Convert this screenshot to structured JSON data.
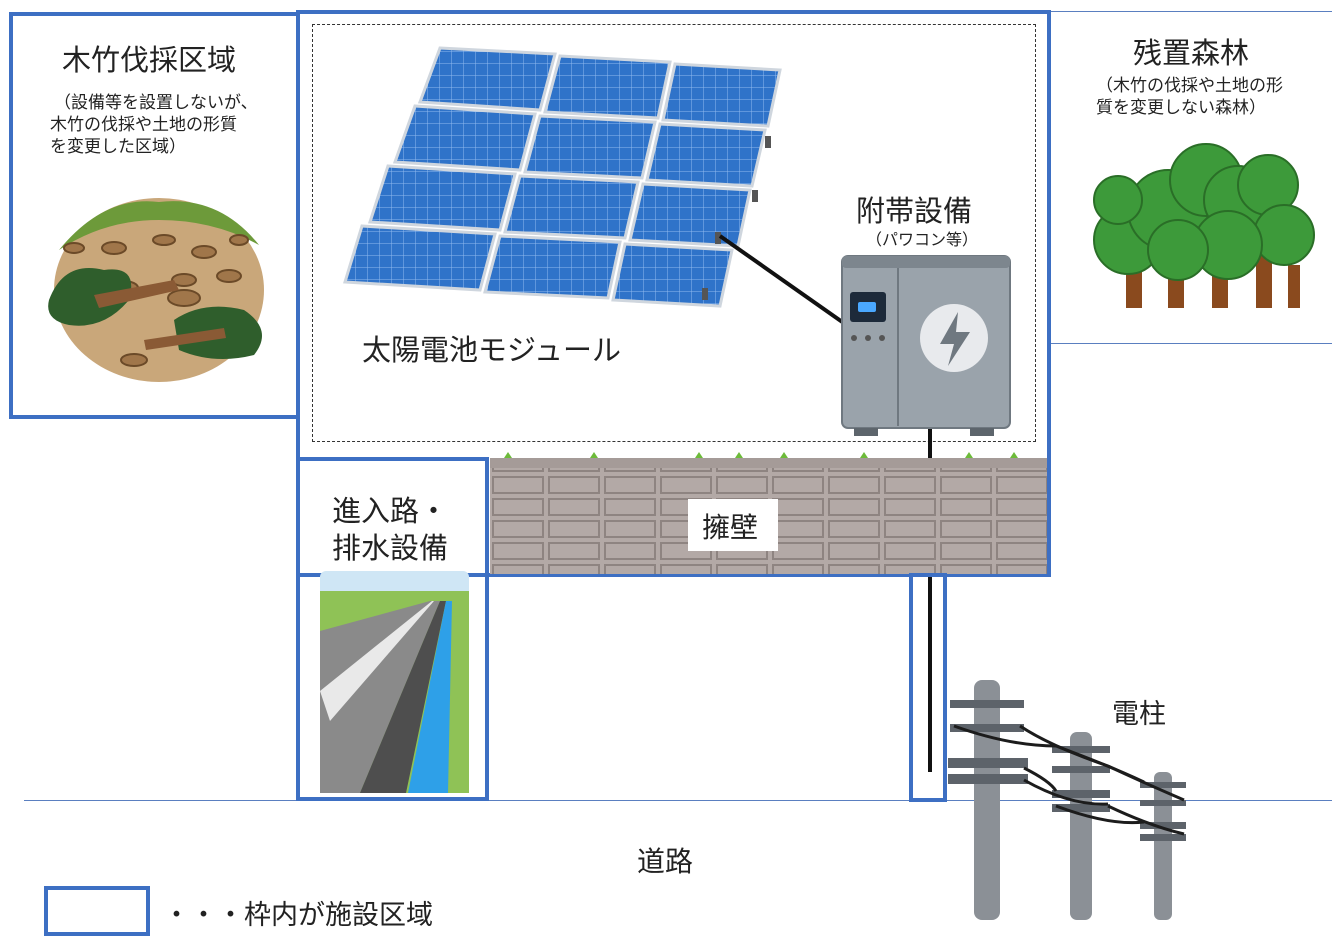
{
  "felling_area": {
    "title": "木竹伐採区域",
    "note_line1": "（設備等を設置しないが、",
    "note_line2": "木竹の伐採や土地の形質",
    "note_line3": "を変更した区域）"
  },
  "remaining_forest": {
    "title": "残置森林",
    "note_line1": "（木竹の伐採や土地の形",
    "note_line2": "質を変更しない森林）"
  },
  "solar_module": {
    "label": "太陽電池モジュール"
  },
  "accessory": {
    "title": "附帯設備",
    "subtitle": "（パワコン等）"
  },
  "access_road": {
    "line1": "進入路・",
    "line2": "排水設備"
  },
  "retaining_wall": {
    "label": "擁壁"
  },
  "utility_pole": {
    "label": "電柱"
  },
  "road": {
    "label": "道路"
  },
  "legend": {
    "label": "・・・枠内が施設区域"
  },
  "colors": {
    "frame": "#3d6fc3",
    "panel": "#2f73c9",
    "tree": "#3d9a3a",
    "trunk": "#8a4a1e"
  }
}
